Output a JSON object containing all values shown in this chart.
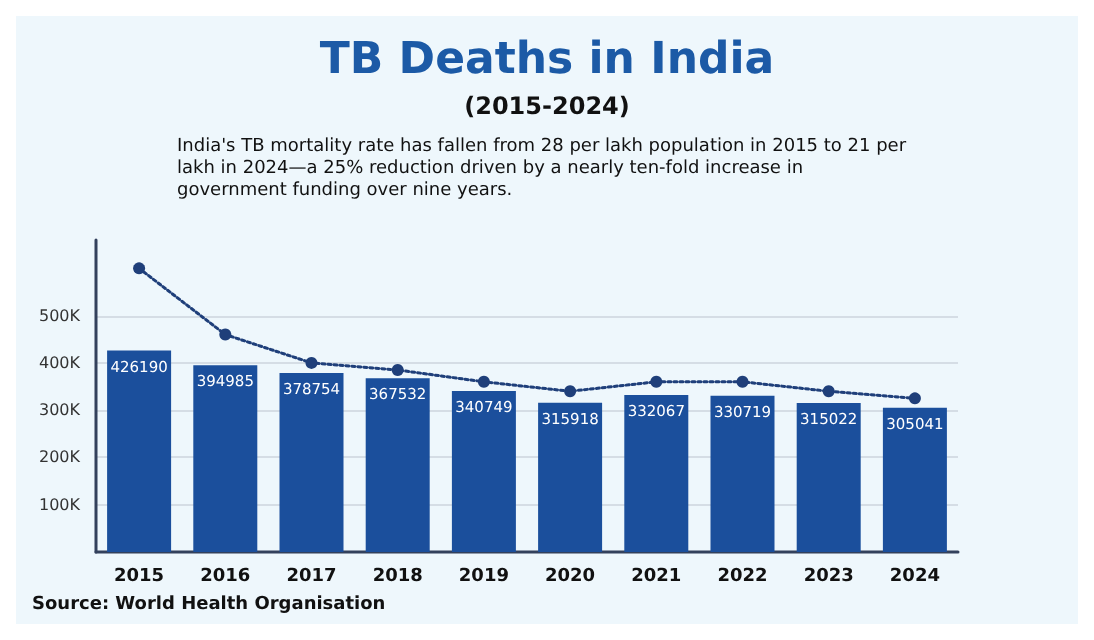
{
  "chart_data": {
    "type": "bar",
    "title": "TB Deaths in India",
    "subtitle": "(2015-2024)",
    "annotations": [
      "India's TB mortality rate has fallen from 28 per lakh population in 2015 to 21 per lakh in 2024—a 25% reduction driven by a nearly ten-fold increase in government funding over nine years.",
      "Source: World Health Organisation"
    ],
    "categories": [
      "2015",
      "2016",
      "2017",
      "2018",
      "2019",
      "2020",
      "2021",
      "2022",
      "2023",
      "2024"
    ],
    "series": [
      {
        "color": "#1b4f9c",
        "values": [
          426190,
          394985,
          378754,
          367532,
          340749,
          315918,
          332067,
          330719,
          315022,
          305041
        ],
        "value_labels": [
          "426190",
          "394985",
          "378754",
          "367532",
          "340749",
          "315918",
          "332067",
          "330719",
          "315022",
          "305041"
        ]
      },
      {
        "type": "line",
        "color": "#1f3f7a",
        "marker": "circle",
        "line_style": "dotted",
        "values": [
          600000,
          460000,
          400000,
          385000,
          360000,
          340000,
          360000,
          360000,
          340000,
          325000
        ]
      }
    ],
    "ylim": [
      0,
      660000
    ],
    "yticks": [
      {
        "value": 100000,
        "label": "100K"
      },
      {
        "value": 200000,
        "label": "200K"
      },
      {
        "value": 300000,
        "label": "300K"
      },
      {
        "value": 400000,
        "label": "400K"
      },
      {
        "value": 500000,
        "label": "500K"
      }
    ],
    "grid": "y"
  }
}
